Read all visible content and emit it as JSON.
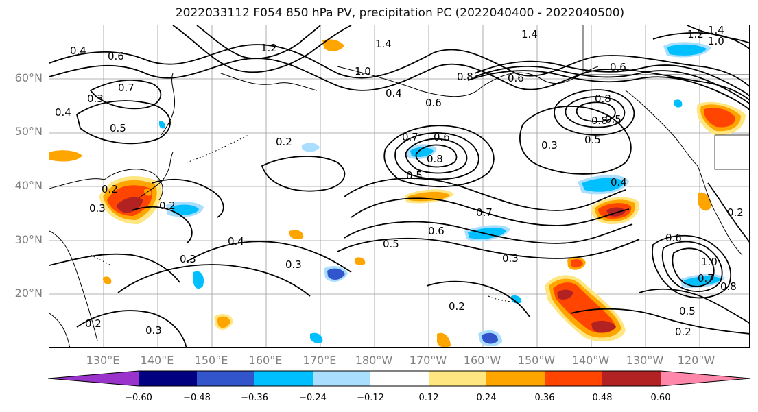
{
  "title": "2022033112 F054 850 hPa PV, precipitation PC (2022040400 - 2022040500)",
  "map": {
    "lat_labels": [
      "60°N",
      "50°N",
      "40°N",
      "30°N",
      "20°N"
    ],
    "lon_labels": [
      "130°E",
      "140°E",
      "150°E",
      "160°E",
      "170°E",
      "180°W",
      "170°W",
      "160°W",
      "150°W",
      "140°W",
      "130°W",
      "120°W"
    ],
    "contour_labels": [
      "0.4",
      "0.6",
      "0.7",
      "0.3",
      "0.4",
      "0.5",
      "1.2",
      "1.4",
      "1.0",
      "1.4",
      "0.4",
      "0.6",
      "0.8",
      "0.6",
      "0.6",
      "0.8",
      "0.5",
      "0.8",
      "0.3",
      "0.5",
      "1.2",
      "1.4",
      "1.0",
      "0.2",
      "0.7",
      "0.6",
      "0.8",
      "0.5",
      "0.2",
      "0.3",
      "0.2",
      "0.4",
      "0.7",
      "0.6",
      "0.3",
      "0.6",
      "0.4",
      "0.5",
      "0.3",
      "0.3",
      "0.2",
      "1.0",
      "0.7",
      "0.8",
      "0.5",
      "0.2",
      "0.2",
      "0.3",
      "0.2"
    ]
  },
  "colorbar": {
    "colors": [
      "#9933cc",
      "#000080",
      "#3355cc",
      "#00bfff",
      "#aadeff",
      "#ffffff",
      "#ffe680",
      "#ffa500",
      "#ff4500",
      "#b22222",
      "#ff88aa"
    ],
    "tick_labels": [
      "−0.60",
      "−0.48",
      "−0.36",
      "−0.24",
      "−0.12",
      "0.12",
      "0.24",
      "0.36",
      "0.48",
      "0.60"
    ]
  }
}
